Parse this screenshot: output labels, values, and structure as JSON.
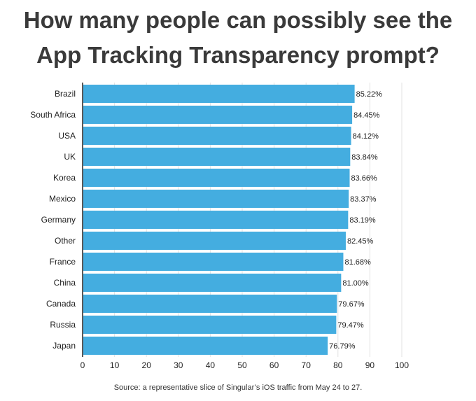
{
  "title_line1": "How many people can possibly see the",
  "title_line2": "App Tracking Transparency prompt?",
  "source": "Source: a representative slice of Singular’s iOS traffic from May 24 to 27.",
  "colors": {
    "bar": "#44ade0",
    "grid": "#e2e2e2",
    "axis": "#222222"
  },
  "chart_data": {
    "type": "bar",
    "orientation": "horizontal",
    "categories": [
      "Brazil",
      "South Africa",
      "USA",
      "UK",
      "Korea",
      "Mexico",
      "Germany",
      "Other",
      "France",
      "China",
      "Canada",
      "Russia",
      "Japan"
    ],
    "values": [
      85.22,
      84.45,
      84.12,
      83.84,
      83.66,
      83.37,
      83.19,
      82.45,
      81.68,
      81.0,
      79.67,
      79.47,
      76.79
    ],
    "value_labels": [
      "85.22%",
      "84.45%",
      "84.12%",
      "83.84%",
      "83.66%",
      "83.37%",
      "83.19%",
      "82.45%",
      "81.68%",
      "81.00%",
      "79.67%",
      "79.47%",
      "76.79%"
    ],
    "xticks": [
      0,
      10,
      20,
      30,
      40,
      50,
      60,
      70,
      80,
      90,
      100
    ],
    "xlim": [
      0,
      100
    ],
    "grid": true,
    "legend": "none",
    "title": "How many people can possibly see the App Tracking Transparency prompt?"
  }
}
